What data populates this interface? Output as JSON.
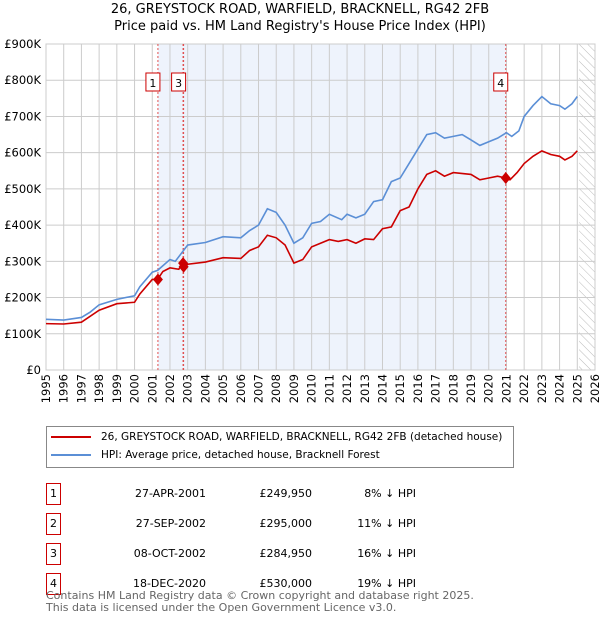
{
  "title_line1": "26, GREYSTOCK ROAD, WARFIELD, BRACKNELL, RG42 2FB",
  "title_line2": "Price paid vs. HM Land Registry's House Price Index (HPI)",
  "chart_data": {
    "type": "line",
    "ylim": [
      0,
      900000
    ],
    "xlim": [
      1995,
      2026
    ],
    "yticks": [
      {
        "v": 0,
        "label": "£0"
      },
      {
        "v": 100000,
        "label": "£100K"
      },
      {
        "v": 200000,
        "label": "£200K"
      },
      {
        "v": 300000,
        "label": "£300K"
      },
      {
        "v": 400000,
        "label": "£400K"
      },
      {
        "v": 500000,
        "label": "£500K"
      },
      {
        "v": 600000,
        "label": "£600K"
      },
      {
        "v": 700000,
        "label": "£700K"
      },
      {
        "v": 800000,
        "label": "£800K"
      },
      {
        "v": 900000,
        "label": "£900K"
      }
    ],
    "xticks": [
      "1995",
      "1996",
      "1997",
      "1998",
      "1999",
      "2000",
      "2001",
      "2002",
      "2003",
      "2004",
      "2005",
      "2006",
      "2007",
      "2008",
      "2009",
      "2010",
      "2011",
      "2012",
      "2013",
      "2014",
      "2015",
      "2016",
      "2017",
      "2018",
      "2019",
      "2020",
      "2021",
      "2022",
      "2023",
      "2024",
      "2025",
      "2026"
    ],
    "series": [
      {
        "name": "26, GREYSTOCK ROAD, WARFIELD, BRACKNELL, RG42 2FB (detached house)",
        "color": "#cc0000",
        "points": [
          [
            1995,
            128
          ],
          [
            1996,
            127
          ],
          [
            1997,
            132
          ],
          [
            1998,
            165
          ],
          [
            1999,
            183
          ],
          [
            2000,
            187
          ],
          [
            2000.3,
            210
          ],
          [
            2001,
            250
          ],
          [
            2001.3,
            250
          ],
          [
            2001.6,
            272
          ],
          [
            2002,
            282
          ],
          [
            2002.5,
            278
          ],
          [
            2002.7,
            295
          ],
          [
            2002.8,
            285
          ],
          [
            2003,
            292
          ],
          [
            2004,
            298
          ],
          [
            2005,
            310
          ],
          [
            2006,
            308
          ],
          [
            2006.5,
            330
          ],
          [
            2007,
            340
          ],
          [
            2007.5,
            372
          ],
          [
            2008,
            365
          ],
          [
            2008.5,
            345
          ],
          [
            2009,
            295
          ],
          [
            2009.5,
            305
          ],
          [
            2010,
            340
          ],
          [
            2011,
            360
          ],
          [
            2011.5,
            355
          ],
          [
            2012,
            360
          ],
          [
            2012.5,
            350
          ],
          [
            2013,
            362
          ],
          [
            2013.5,
            360
          ],
          [
            2014,
            390
          ],
          [
            2014.5,
            395
          ],
          [
            2015,
            440
          ],
          [
            2015.5,
            450
          ],
          [
            2016,
            500
          ],
          [
            2016.5,
            540
          ],
          [
            2017,
            550
          ],
          [
            2017.5,
            535
          ],
          [
            2018,
            545
          ],
          [
            2019,
            540
          ],
          [
            2019.5,
            525
          ],
          [
            2020,
            530
          ],
          [
            2020.5,
            535
          ],
          [
            2020.96,
            530
          ],
          [
            2021.2,
            525
          ],
          [
            2021.6,
            545
          ],
          [
            2022,
            570
          ],
          [
            2022.5,
            590
          ],
          [
            2023,
            605
          ],
          [
            2023.5,
            595
          ],
          [
            2024,
            590
          ],
          [
            2024.3,
            580
          ],
          [
            2024.7,
            590
          ],
          [
            2025,
            605
          ]
        ]
      },
      {
        "name": "HPI: Average price, detached house, Bracknell Forest",
        "color": "#5b8fd6",
        "points": [
          [
            1995,
            140
          ],
          [
            1996,
            138
          ],
          [
            1997,
            145
          ],
          [
            1997.5,
            160
          ],
          [
            1998,
            180
          ],
          [
            1999,
            195
          ],
          [
            2000,
            205
          ],
          [
            2000.3,
            230
          ],
          [
            2001,
            270
          ],
          [
            2001.3,
            275
          ],
          [
            2002,
            305
          ],
          [
            2002.3,
            300
          ],
          [
            2003,
            345
          ],
          [
            2004,
            352
          ],
          [
            2005,
            368
          ],
          [
            2006,
            365
          ],
          [
            2006.5,
            385
          ],
          [
            2007,
            400
          ],
          [
            2007.5,
            445
          ],
          [
            2008,
            435
          ],
          [
            2008.5,
            400
          ],
          [
            2009,
            350
          ],
          [
            2009.5,
            365
          ],
          [
            2010,
            405
          ],
          [
            2010.5,
            410
          ],
          [
            2011,
            430
          ],
          [
            2011.7,
            415
          ],
          [
            2012,
            430
          ],
          [
            2012.5,
            420
          ],
          [
            2013,
            430
          ],
          [
            2013.5,
            465
          ],
          [
            2014,
            470
          ],
          [
            2014.5,
            520
          ],
          [
            2015,
            530
          ],
          [
            2015.5,
            570
          ],
          [
            2016,
            610
          ],
          [
            2016.5,
            650
          ],
          [
            2017,
            655
          ],
          [
            2017.5,
            640
          ],
          [
            2018,
            645
          ],
          [
            2018.5,
            650
          ],
          [
            2019,
            635
          ],
          [
            2019.5,
            620
          ],
          [
            2020,
            630
          ],
          [
            2020.5,
            640
          ],
          [
            2021,
            655
          ],
          [
            2021.3,
            645
          ],
          [
            2021.7,
            660
          ],
          [
            2022,
            700
          ],
          [
            2022.5,
            730
          ],
          [
            2023,
            755
          ],
          [
            2023.5,
            735
          ],
          [
            2024,
            730
          ],
          [
            2024.3,
            720
          ],
          [
            2024.7,
            735
          ],
          [
            2025,
            755
          ]
        ]
      }
    ],
    "sales": [
      {
        "n": "1",
        "x": 2001.32,
        "price": 249950
      },
      {
        "n": "2",
        "x": 2002.74,
        "price": 295000
      },
      {
        "n": "3",
        "x": 2002.77,
        "price": 284950
      },
      {
        "n": "4",
        "x": 2020.96,
        "price": 530000
      }
    ],
    "marker_labels": [
      {
        "n": "1",
        "x": 2001.32
      },
      {
        "n": "3",
        "x": 2002.77
      },
      {
        "n": "4",
        "x": 2020.96
      }
    ],
    "shaded_range": [
      2001.32,
      2020.96
    ],
    "hatched_from": 2025.1
  },
  "legend": {
    "red": "26, GREYSTOCK ROAD, WARFIELD, BRACKNELL, RG42 2FB (detached house)",
    "blue": "HPI: Average price, detached house, Bracknell Forest"
  },
  "transactions": [
    {
      "n": "1",
      "date": "27-APR-2001",
      "price": "£249,950",
      "hpi": "8% ↓ HPI"
    },
    {
      "n": "2",
      "date": "27-SEP-2002",
      "price": "£295,000",
      "hpi": "11% ↓ HPI"
    },
    {
      "n": "3",
      "date": "08-OCT-2002",
      "price": "£284,950",
      "hpi": "16% ↓ HPI"
    },
    {
      "n": "4",
      "date": "18-DEC-2020",
      "price": "£530,000",
      "hpi": "19% ↓ HPI"
    }
  ],
  "footer": {
    "line1": "Contains HM Land Registry data © Crown copyright and database right 2025.",
    "line2": "This data is licensed under the Open Government Licence v3.0."
  }
}
